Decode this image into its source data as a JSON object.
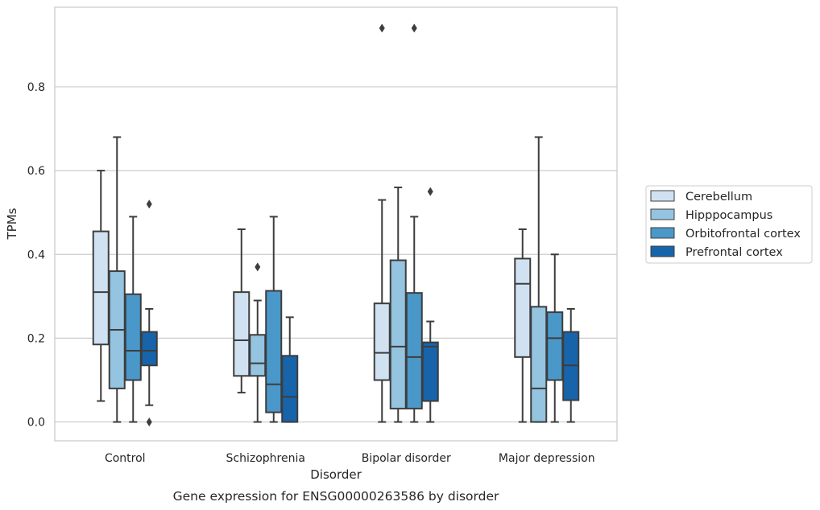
{
  "chart_data": {
    "type": "box",
    "caption": "Gene expression for ENSG00000263586 by disorder",
    "xlabel": "Disorder",
    "ylabel": "TPMs",
    "ylim": [
      -0.045,
      0.99
    ],
    "yticks": [
      0.0,
      0.2,
      0.4,
      0.6,
      0.8
    ],
    "ytick_labels": [
      "0.0",
      "0.2",
      "0.4",
      "0.6",
      "0.8"
    ],
    "grid": true,
    "legend_position": "right",
    "categories": [
      "Control",
      "Schizophrenia",
      "Bipolar disorder",
      "Major depression"
    ],
    "series": [
      {
        "name": "Cerebellum",
        "color": "#d0e1f2",
        "boxes": [
          {
            "whisker_low": 0.05,
            "q1": 0.185,
            "median": 0.31,
            "q3": 0.455,
            "whisker_high": 0.6,
            "outliers": []
          },
          {
            "whisker_low": 0.07,
            "q1": 0.11,
            "median": 0.195,
            "q3": 0.31,
            "whisker_high": 0.46,
            "outliers": []
          },
          {
            "whisker_low": 0.0,
            "q1": 0.1,
            "median": 0.165,
            "q3": 0.283,
            "whisker_high": 0.53,
            "outliers": [
              0.94
            ]
          },
          {
            "whisker_low": 0.0,
            "q1": 0.155,
            "median": 0.33,
            "q3": 0.39,
            "whisker_high": 0.46,
            "outliers": []
          }
        ]
      },
      {
        "name": "Hipppocampus",
        "color": "#94c4df",
        "boxes": [
          {
            "whisker_low": 0.0,
            "q1": 0.08,
            "median": 0.22,
            "q3": 0.36,
            "whisker_high": 0.68,
            "outliers": []
          },
          {
            "whisker_low": 0.0,
            "q1": 0.11,
            "median": 0.14,
            "q3": 0.208,
            "whisker_high": 0.29,
            "outliers": [
              0.37
            ]
          },
          {
            "whisker_low": 0.0,
            "q1": 0.032,
            "median": 0.18,
            "q3": 0.386,
            "whisker_high": 0.56,
            "outliers": []
          },
          {
            "whisker_low": 0.0,
            "q1": 0.0,
            "median": 0.08,
            "q3": 0.275,
            "whisker_high": 0.68,
            "outliers": []
          }
        ]
      },
      {
        "name": "Orbitofrontal cortex",
        "color": "#4a98c9",
        "boxes": [
          {
            "whisker_low": 0.0,
            "q1": 0.1,
            "median": 0.17,
            "q3": 0.305,
            "whisker_high": 0.49,
            "outliers": []
          },
          {
            "whisker_low": 0.0,
            "q1": 0.023,
            "median": 0.09,
            "q3": 0.313,
            "whisker_high": 0.49,
            "outliers": []
          },
          {
            "whisker_low": 0.0,
            "q1": 0.032,
            "median": 0.155,
            "q3": 0.308,
            "whisker_high": 0.49,
            "outliers": [
              0.94
            ]
          },
          {
            "whisker_low": 0.0,
            "q1": 0.1,
            "median": 0.2,
            "q3": 0.262,
            "whisker_high": 0.4,
            "outliers": []
          }
        ]
      },
      {
        "name": "Prefrontal cortex",
        "color": "#1764ab",
        "boxes": [
          {
            "whisker_low": 0.04,
            "q1": 0.135,
            "median": 0.17,
            "q3": 0.215,
            "whisker_high": 0.27,
            "outliers": [
              0.52,
              0.0
            ]
          },
          {
            "whisker_low": 0.0,
            "q1": 0.0,
            "median": 0.06,
            "q3": 0.158,
            "whisker_high": 0.25,
            "outliers": []
          },
          {
            "whisker_low": 0.0,
            "q1": 0.05,
            "median": 0.18,
            "q3": 0.19,
            "whisker_high": 0.24,
            "outliers": [
              0.55
            ]
          },
          {
            "whisker_low": 0.0,
            "q1": 0.052,
            "median": 0.135,
            "q3": 0.215,
            "whisker_high": 0.27,
            "outliers": []
          }
        ]
      }
    ]
  }
}
